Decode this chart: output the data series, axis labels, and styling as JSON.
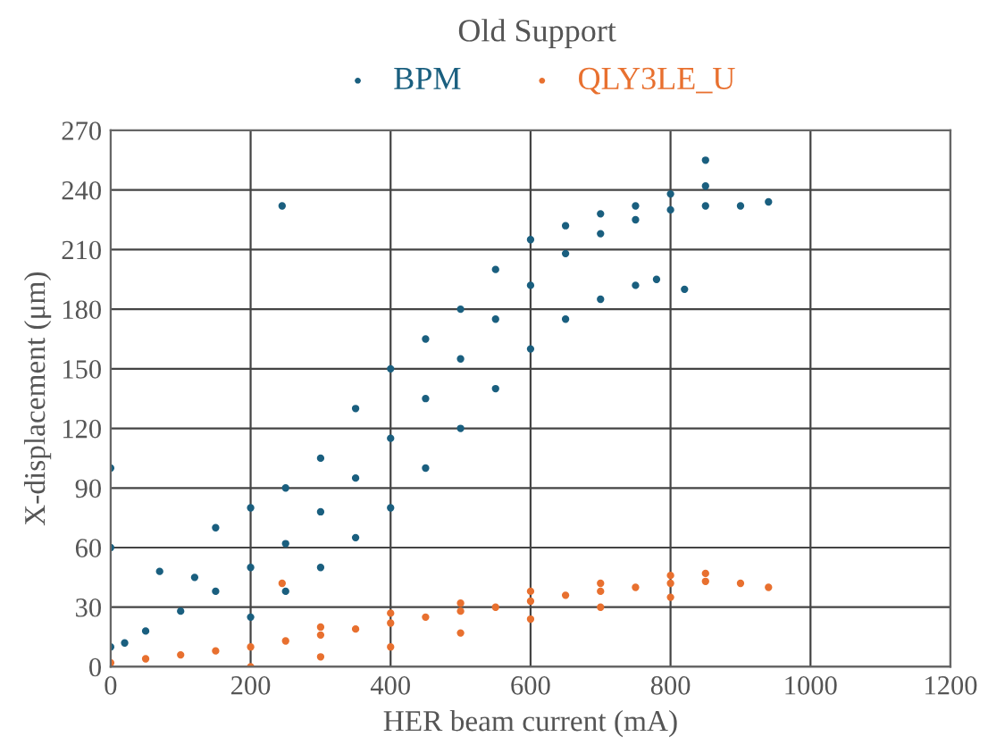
{
  "chart_data": {
    "type": "scatter",
    "title": "Old Support",
    "xlabel": "HER beam current (mA)",
    "ylabel": "X-displacement (μm)",
    "xlim": [
      0,
      1200
    ],
    "xticks": [
      0,
      200,
      400,
      600,
      800,
      1000,
      1200
    ],
    "ylim": [
      0,
      270
    ],
    "yticks": [
      0,
      30,
      60,
      90,
      120,
      150,
      180,
      210,
      240,
      270
    ],
    "grid": true,
    "legend": "top",
    "series": [
      {
        "name": "BPM",
        "color": "#1a5f7f",
        "x": [
          0,
          0,
          0,
          20,
          50,
          100,
          150,
          200,
          250,
          300,
          350,
          400,
          450,
          500,
          550,
          600,
          650,
          700,
          750,
          800,
          850,
          900,
          940,
          245,
          200,
          250,
          300,
          350,
          400,
          450,
          500,
          550,
          600,
          650,
          700,
          750,
          780,
          820,
          150,
          200,
          250,
          300,
          350,
          400,
          450,
          500,
          550,
          600,
          650,
          700,
          750,
          800,
          850,
          850,
          70,
          120
        ],
        "values": [
          100,
          60,
          10,
          12,
          18,
          28,
          38,
          50,
          62,
          78,
          95,
          115,
          135,
          155,
          175,
          192,
          208,
          218,
          225,
          230,
          232,
          232,
          234,
          232,
          25,
          38,
          50,
          65,
          80,
          100,
          120,
          140,
          160,
          175,
          185,
          192,
          195,
          190,
          70,
          80,
          90,
          105,
          130,
          150,
          165,
          180,
          200,
          215,
          222,
          228,
          232,
          238,
          242,
          255,
          48,
          45
        ]
      },
      {
        "name": "QLY3LE_U",
        "color": "#e8702f",
        "x": [
          0,
          50,
          100,
          150,
          200,
          250,
          300,
          350,
          400,
          450,
          500,
          550,
          600,
          650,
          700,
          750,
          800,
          850,
          900,
          940,
          200,
          300,
          400,
          500,
          600,
          700,
          800,
          300,
          400,
          500,
          600,
          700,
          800,
          850,
          245
        ],
        "values": [
          2,
          4,
          6,
          8,
          10,
          13,
          16,
          19,
          22,
          25,
          28,
          30,
          33,
          36,
          38,
          40,
          42,
          43,
          42,
          40,
          0,
          5,
          10,
          17,
          24,
          30,
          35,
          20,
          27,
          32,
          38,
          42,
          46,
          47,
          42
        ]
      }
    ]
  }
}
